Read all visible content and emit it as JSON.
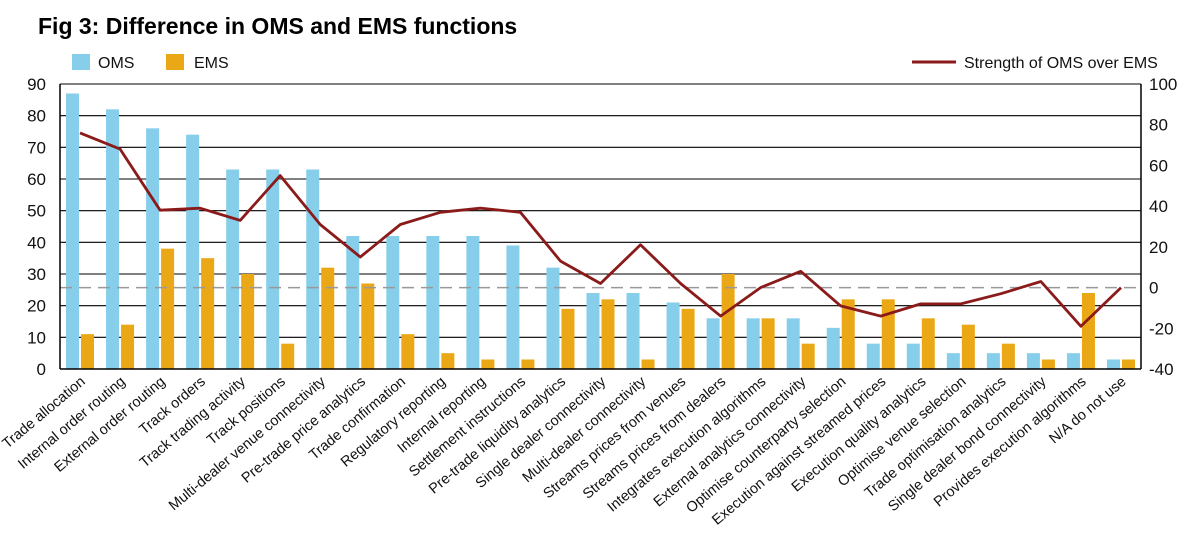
{
  "chart_data": {
    "type": "bar",
    "title": "Fig 3: Difference in OMS and EMS functions",
    "categories": [
      "Trade allocation",
      "Internal order routing",
      "External order routing",
      "Track orders",
      "Track trading activity",
      "Track positions",
      "Multi-dealer venue connectivity",
      "Pre-trade price analytics",
      "Trade confirmation",
      "Regulatory reporting",
      "Internal reporting",
      "Settlement instructions",
      "Pre-trade liquidity analytics",
      "Single dealer connectivity",
      "Multi-dealer connectivity",
      "Streams prices from venues",
      "Streams prices from dealers",
      "Integrates execution algorithms",
      "External analytics connectivity",
      "Optimise counterparty selection",
      "Execution against streamed prices",
      "Execution quality analytics",
      "Optimise venue selection",
      "Trade optimisation analytics",
      "Single dealer bond connectivity",
      "Provides execution algorithms",
      "N/A do not use"
    ],
    "series": [
      {
        "name": "OMS",
        "type": "bar",
        "axis": "left",
        "color": "#87CEEB",
        "values": [
          87,
          82,
          76,
          74,
          63,
          63,
          63,
          42,
          42,
          42,
          42,
          39,
          32,
          24,
          24,
          21,
          16,
          16,
          16,
          13,
          8,
          8,
          5,
          5,
          5,
          5,
          3
        ]
      },
      {
        "name": "EMS",
        "type": "bar",
        "axis": "left",
        "color": "#EBA816",
        "values": [
          11,
          14,
          38,
          35,
          30,
          8,
          32,
          27,
          11,
          5,
          3,
          3,
          19,
          22,
          3,
          19,
          30,
          16,
          8,
          22,
          22,
          16,
          14,
          8,
          3,
          24,
          3
        ]
      },
      {
        "name": "Strength of OMS over EMS",
        "type": "line",
        "axis": "right",
        "color": "#8B1A1A",
        "values": [
          76,
          68,
          38,
          39,
          33,
          55,
          31,
          15,
          31,
          37,
          39,
          37,
          13,
          2,
          21,
          2,
          -14,
          0,
          8,
          -9,
          -14,
          -8,
          -8,
          -3,
          3,
          -19,
          0
        ]
      }
    ],
    "y_left": {
      "min": 0,
      "max": 90,
      "ticks": [
        0,
        10,
        20,
        30,
        40,
        50,
        60,
        70,
        80,
        90
      ]
    },
    "y_right": {
      "min": -40,
      "max": 100,
      "ticks": [
        -40,
        -20,
        0,
        20,
        40,
        60,
        80,
        100
      ],
      "zero_line": "dashed"
    },
    "grid": true,
    "legend": "top"
  }
}
